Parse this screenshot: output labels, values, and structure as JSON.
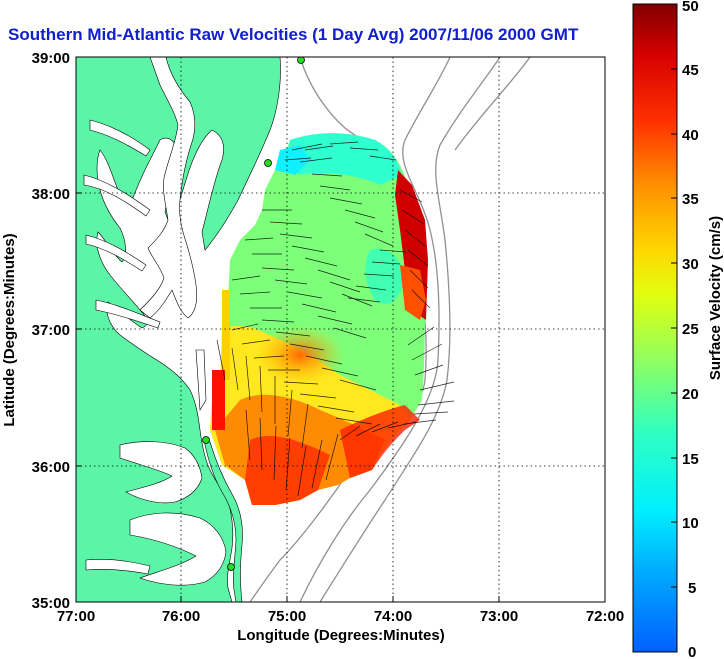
{
  "title": "Southern Mid-Atlantic Raw Velocities (1 Day Avg) 2007/11/06 2000 GMT",
  "map": {
    "x_label": "Longitude (Degrees:Minutes)",
    "y_label": "Latitude (Degrees:Minutes)",
    "lon_ticks": [
      "77:00",
      "76:00",
      "75:00",
      "74:00",
      "73:00",
      "72:00"
    ],
    "lat_ticks": [
      "39:00",
      "38:00",
      "37:00",
      "36:00",
      "35:00"
    ],
    "lon_range": [
      -77,
      -72
    ],
    "lat_range": [
      35,
      39
    ],
    "grid": "dotted",
    "land_color": "#5cf5a8",
    "water_color": "#ffffff",
    "station_color": "#22dd22"
  },
  "colorbar": {
    "label": "Surface Velocity (cm/s)",
    "ticks": [
      "50",
      "45",
      "40",
      "35",
      "30",
      "25",
      "20",
      "15",
      "10",
      "5",
      "0"
    ],
    "range": [
      0,
      50
    ],
    "colormap": "jet"
  }
}
